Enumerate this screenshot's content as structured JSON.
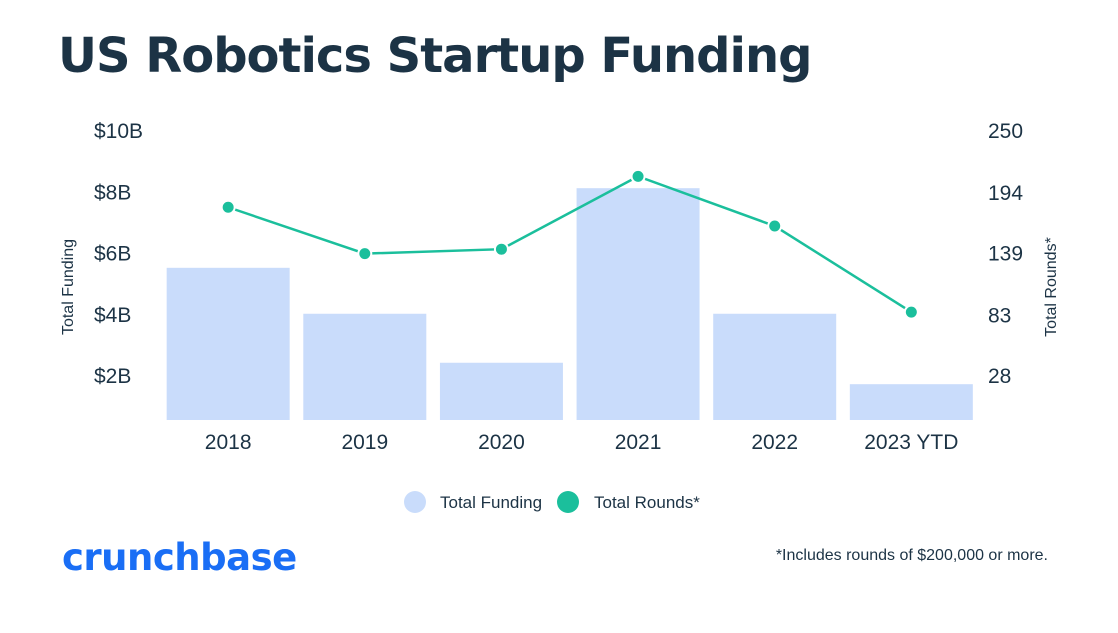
{
  "title": "US Robotics Startup Funding",
  "footnote": "*Includes rounds of $200,000 or more.",
  "logo_text": "crunchbase",
  "colors": {
    "bar": "#c9dcfb",
    "line": "#1bbf9c",
    "text": "#1c3345",
    "logo": "#1a6ef5"
  },
  "chart_data": {
    "type": "bar+line",
    "title": "US Robotics Startup Funding",
    "categories": [
      "2018",
      "2019",
      "2020",
      "2021",
      "2022",
      "2023 YTD"
    ],
    "series": [
      {
        "name": "Total Funding",
        "type": "bar",
        "axis": "left",
        "unit": "USD billions",
        "values": [
          5.5,
          4.0,
          2.4,
          8.1,
          4.0,
          1.7
        ]
      },
      {
        "name": "Total Rounds*",
        "type": "line",
        "axis": "right",
        "values": [
          180,
          138,
          142,
          208,
          163,
          85
        ]
      }
    ],
    "left_axis": {
      "label": "Total Funding",
      "ticks": [
        {
          "value": 10,
          "label": "$10B"
        },
        {
          "value": 8,
          "label": "$8B"
        },
        {
          "value": 6,
          "label": "$6B"
        },
        {
          "value": 4,
          "label": "$4B"
        },
        {
          "value": 2,
          "label": "$2B"
        }
      ],
      "range": [
        0.5,
        10
      ]
    },
    "right_axis": {
      "label": "Total Rounds*",
      "ticks": [
        {
          "value": 250,
          "label": "250"
        },
        {
          "value": 194,
          "label": "194"
        },
        {
          "value": 139,
          "label": "139"
        },
        {
          "value": 83,
          "label": "83"
        },
        {
          "value": 28,
          "label": "28"
        }
      ],
      "range": [
        -5,
        250
      ]
    },
    "legend": {
      "position": "bottom-center",
      "entries": [
        "Total Funding",
        "Total Rounds*"
      ]
    },
    "grid": false
  }
}
